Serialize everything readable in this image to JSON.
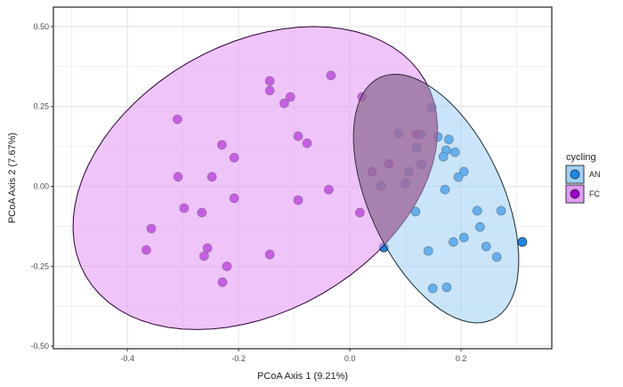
{
  "chart_data": {
    "type": "scatter",
    "xlabel": "PCoA Axis 1 (9.21%)",
    "ylabel": "PCoA Axis 2 (7.67%)",
    "xlim": [
      -0.533,
      0.363
    ],
    "ylim": [
      -0.508,
      0.561
    ],
    "xticks": [
      -0.4,
      -0.2,
      0.0,
      0.2
    ],
    "xtick_labels": [
      "-0.4",
      "-0.2",
      "0.0",
      "0.2"
    ],
    "yticks": [
      0.5,
      0.25,
      0.0,
      -0.25,
      -0.5
    ],
    "ytick_labels": [
      "0.50",
      "0.25",
      "0.00",
      "-0.25",
      "-0.50"
    ],
    "grid": true,
    "legend": {
      "title": "cycling",
      "placement": "right"
    },
    "series": [
      {
        "name": "AN",
        "color": "#1e88e5",
        "ellipse_color": "#9fd0f5",
        "ellipse": {
          "center": [
            0.155,
            -0.038
          ],
          "axis_a": [
            0.101,
            -0.379
          ],
          "axis_b": [
            0.109,
            0.088
          ]
        },
        "points": [
          [
            0.147,
            0.247
          ],
          [
            0.088,
            0.166
          ],
          [
            0.128,
            0.163
          ],
          [
            0.12,
            0.121
          ],
          [
            0.128,
            0.068
          ],
          [
            0.106,
            0.046
          ],
          [
            0.056,
            0.001
          ],
          [
            0.1,
            0.01
          ],
          [
            0.158,
            0.155
          ],
          [
            0.178,
            0.147
          ],
          [
            0.173,
            0.113
          ],
          [
            0.189,
            0.107
          ],
          [
            0.168,
            0.093
          ],
          [
            0.205,
            0.046
          ],
          [
            0.195,
            0.029
          ],
          [
            0.171,
            -0.01
          ],
          [
            0.118,
            -0.079
          ],
          [
            0.229,
            -0.076
          ],
          [
            0.272,
            -0.076
          ],
          [
            0.234,
            -0.127
          ],
          [
            0.205,
            -0.16
          ],
          [
            0.186,
            -0.174
          ],
          [
            0.245,
            -0.188
          ],
          [
            0.31,
            -0.174
          ],
          [
            0.264,
            -0.221
          ],
          [
            0.141,
            -0.202
          ],
          [
            0.061,
            -0.191
          ],
          [
            0.149,
            -0.319
          ],
          [
            0.174,
            -0.316
          ]
        ]
      },
      {
        "name": "FC",
        "color": "#9b00cc",
        "ellipse_color": "#e29cf5",
        "ellipse": {
          "center": [
            -0.17,
            0.026
          ],
          "axis_a": [
            0.305,
            0.306
          ],
          "axis_b": [
            0.12,
            -0.362
          ]
        },
        "points": [
          [
            -0.034,
            0.347
          ],
          [
            -0.144,
            0.33
          ],
          [
            -0.144,
            0.3
          ],
          [
            -0.107,
            0.28
          ],
          [
            -0.118,
            0.26
          ],
          [
            -0.31,
            0.21
          ],
          [
            -0.23,
            0.13
          ],
          [
            -0.208,
            0.09
          ],
          [
            -0.093,
            0.157
          ],
          [
            -0.077,
            0.135
          ],
          [
            -0.309,
            0.03
          ],
          [
            -0.248,
            0.03
          ],
          [
            -0.208,
            -0.037
          ],
          [
            -0.298,
            -0.068
          ],
          [
            -0.266,
            -0.082
          ],
          [
            -0.093,
            -0.043
          ],
          [
            -0.038,
            -0.01
          ],
          [
            0.018,
            -0.082
          ],
          [
            -0.357,
            -0.132
          ],
          [
            -0.366,
            -0.199
          ],
          [
            -0.256,
            -0.193
          ],
          [
            -0.262,
            -0.218
          ],
          [
            -0.144,
            -0.213
          ],
          [
            -0.221,
            -0.25
          ],
          [
            -0.229,
            -0.3
          ],
          [
            0.022,
            0.28
          ],
          [
            0.04,
            0.046
          ],
          [
            0.07,
            0.071
          ],
          [
            0.12,
            0.163
          ]
        ]
      }
    ]
  }
}
